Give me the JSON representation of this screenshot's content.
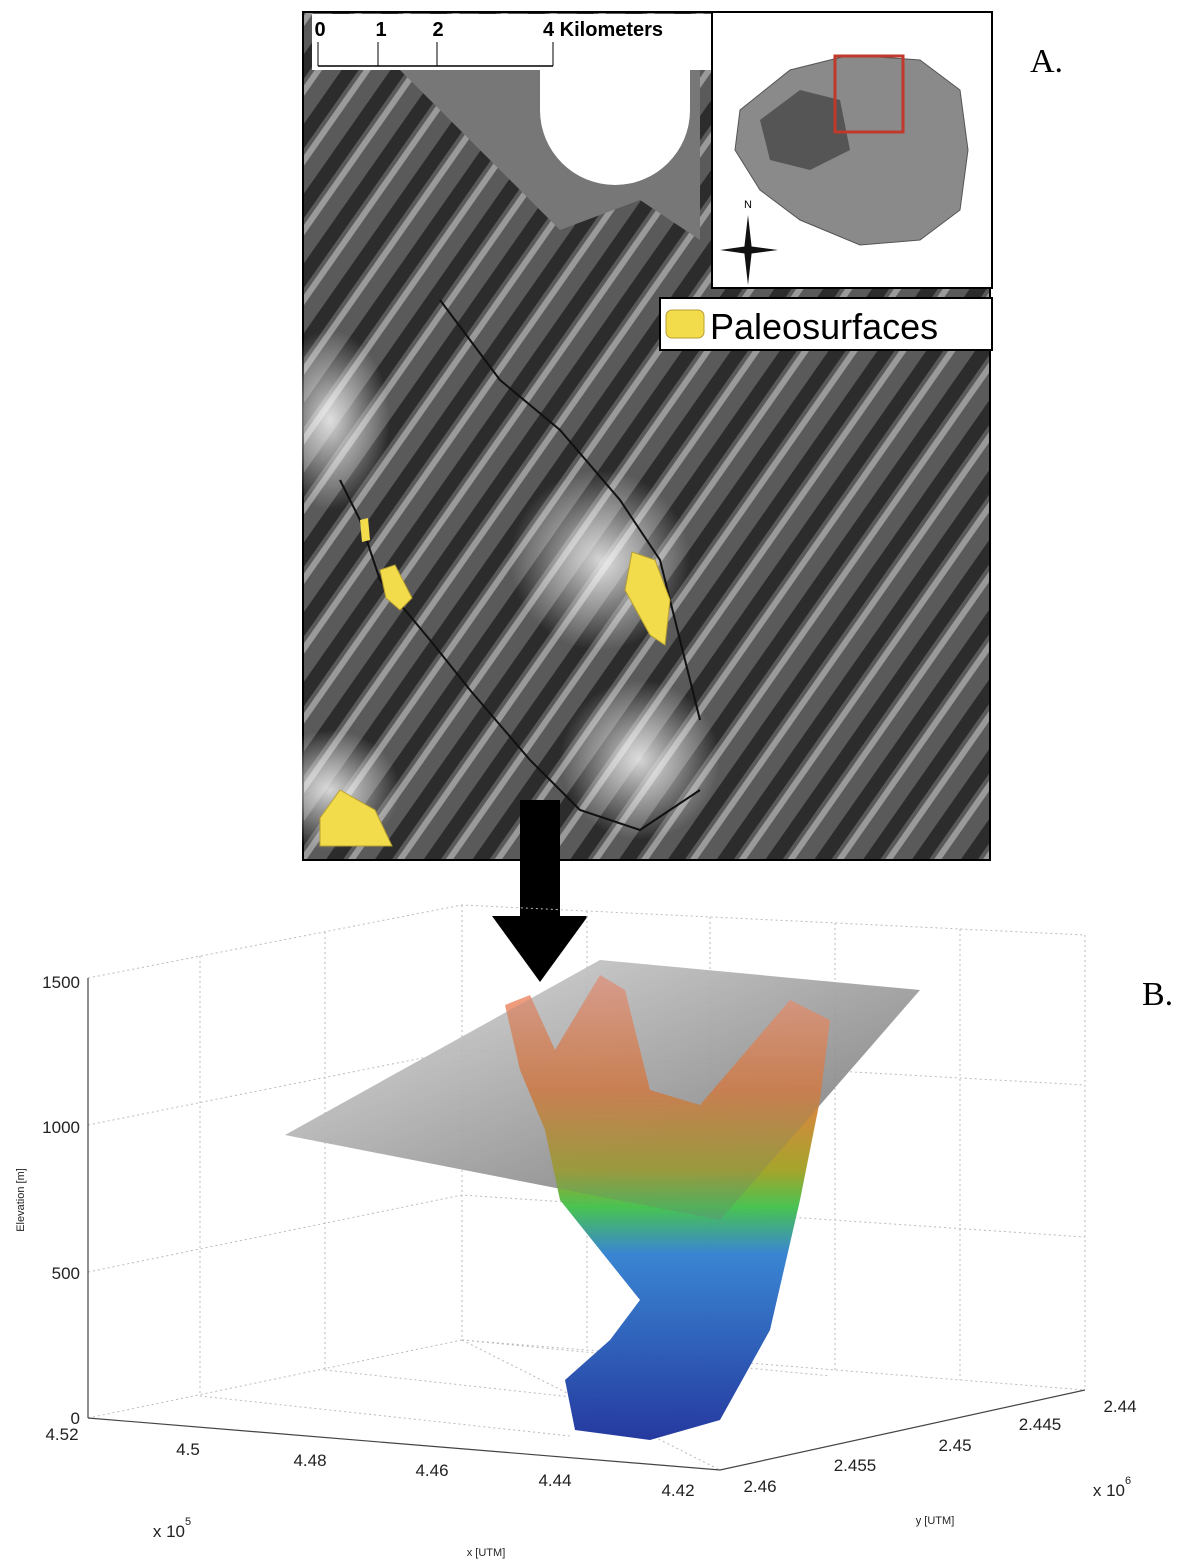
{
  "panel_a": {
    "label": "A.",
    "scale_bar": {
      "labels": [
        "0",
        "1",
        "2",
        "4 Kilometers"
      ]
    },
    "north": "N",
    "legend": "Paleosurfaces"
  },
  "panel_b": {
    "label": "B.",
    "z_axis": {
      "title": "Elevation [m]",
      "ticks": [
        "0",
        "500",
        "1000",
        "1500"
      ]
    },
    "x_axis": {
      "title": "x [UTM]",
      "ticks": [
        "4.52",
        "4.5",
        "4.48",
        "4.46",
        "4.44",
        "4.42"
      ],
      "multiplier": "x 10",
      "exponent": "5"
    },
    "y_axis": {
      "title": "y [UTM]",
      "ticks": [
        "2.46",
        "2.455",
        "2.45",
        "2.445",
        "2.44"
      ],
      "multiplier": "x 10",
      "exponent": "6"
    }
  }
}
